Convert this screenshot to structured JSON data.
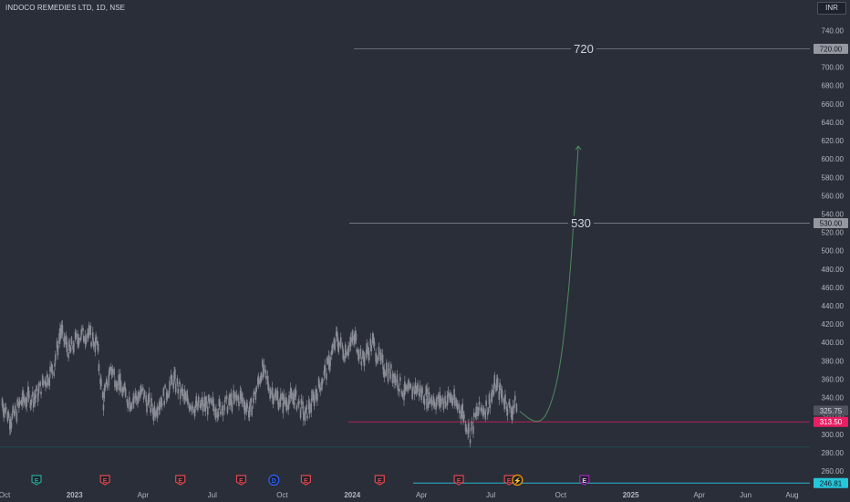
{
  "header": {
    "symbol_title": "INDOCO REMEDIES LTD, 1D, NSE",
    "currency": "INR"
  },
  "colors": {
    "background": "#2a2e39",
    "axis_text": "#b2b5be",
    "candles": "#8a8d96",
    "horizontal_lines": "#868993",
    "projection_curve": "#4f8a5f",
    "low_price_line": "#e91e63",
    "support_line": "#1b5e60",
    "cyan_line": "#26c6da",
    "earnings_badge": "#e0474c",
    "earnings_badge_first": "#26a69a",
    "dividend_badge": "#2962ff",
    "future_event_badge": "#9c27b0"
  },
  "chart_data": {
    "type": "candlestick",
    "y_axis": {
      "min": 240,
      "max": 750,
      "ticks": [
        740,
        720,
        700,
        680,
        660,
        640,
        620,
        600,
        580,
        560,
        540,
        520,
        500,
        480,
        460,
        440,
        420,
        400,
        380,
        360,
        340,
        320,
        300,
        280,
        260
      ],
      "tick_labels": [
        "740.00",
        "720.00",
        "700.00",
        "680.00",
        "660.00",
        "640.00",
        "620.00",
        "600.00",
        "580.00",
        "560.00",
        "540.00",
        "520.00",
        "500.00",
        "480.00",
        "460.00",
        "440.00",
        "420.00",
        "400.00",
        "380.00",
        "360.00",
        "340.00",
        "320.00",
        "300.00",
        "280.00",
        "260.00"
      ]
    },
    "x_axis": {
      "range": [
        "2022-10-01",
        "2025-08-10"
      ],
      "ticks": [
        {
          "date": "2022-10-01",
          "label": "Oct"
        },
        {
          "date": "2023-01-01",
          "label": "2023"
        },
        {
          "date": "2023-04-01",
          "label": "Apr"
        },
        {
          "date": "2023-07-01",
          "label": "Jul"
        },
        {
          "date": "2023-10-01",
          "label": "Oct"
        },
        {
          "date": "2024-01-01",
          "label": "2024"
        },
        {
          "date": "2024-04-01",
          "label": "Apr"
        },
        {
          "date": "2024-07-01",
          "label": "Jul"
        },
        {
          "date": "2024-10-01",
          "label": "Oct"
        },
        {
          "date": "2025-01-01",
          "label": "2025"
        },
        {
          "date": "2025-04-01",
          "label": "Apr"
        },
        {
          "date": "2025-06-01",
          "label": "Jun"
        },
        {
          "date": "2025-08-01",
          "label": "Aug"
        }
      ]
    },
    "price_path": [
      {
        "date": "2022-09-28",
        "close": 335
      },
      {
        "date": "2022-10-10",
        "close": 315
      },
      {
        "date": "2022-10-25",
        "close": 338
      },
      {
        "date": "2022-11-10",
        "close": 340
      },
      {
        "date": "2022-11-25",
        "close": 360
      },
      {
        "date": "2022-12-05",
        "close": 372
      },
      {
        "date": "2022-12-14",
        "close": 412
      },
      {
        "date": "2022-12-26",
        "close": 390
      },
      {
        "date": "2023-01-05",
        "close": 405
      },
      {
        "date": "2023-01-18",
        "close": 410
      },
      {
        "date": "2023-01-31",
        "close": 398
      },
      {
        "date": "2023-02-08",
        "close": 335
      },
      {
        "date": "2023-02-18",
        "close": 372
      },
      {
        "date": "2023-03-01",
        "close": 355
      },
      {
        "date": "2023-03-15",
        "close": 335
      },
      {
        "date": "2023-04-01",
        "close": 345
      },
      {
        "date": "2023-04-15",
        "close": 325
      },
      {
        "date": "2023-04-28",
        "close": 340
      },
      {
        "date": "2023-05-12",
        "close": 360
      },
      {
        "date": "2023-05-25",
        "close": 340
      },
      {
        "date": "2023-06-08",
        "close": 330
      },
      {
        "date": "2023-06-25",
        "close": 332
      },
      {
        "date": "2023-07-10",
        "close": 328
      },
      {
        "date": "2023-07-25",
        "close": 335
      },
      {
        "date": "2023-08-08",
        "close": 340
      },
      {
        "date": "2023-08-20",
        "close": 325
      },
      {
        "date": "2023-09-05",
        "close": 370
      },
      {
        "date": "2023-09-18",
        "close": 345
      },
      {
        "date": "2023-10-02",
        "close": 335
      },
      {
        "date": "2023-10-18",
        "close": 340
      },
      {
        "date": "2023-11-01",
        "close": 320
      },
      {
        "date": "2023-11-18",
        "close": 350
      },
      {
        "date": "2023-12-01",
        "close": 375
      },
      {
        "date": "2023-12-12",
        "close": 405
      },
      {
        "date": "2023-12-22",
        "close": 390
      },
      {
        "date": "2024-01-05",
        "close": 405
      },
      {
        "date": "2024-01-15",
        "close": 380
      },
      {
        "date": "2024-01-28",
        "close": 400
      },
      {
        "date": "2024-02-10",
        "close": 375
      },
      {
        "date": "2024-02-25",
        "close": 365
      },
      {
        "date": "2024-03-10",
        "close": 345
      },
      {
        "date": "2024-03-25",
        "close": 350
      },
      {
        "date": "2024-04-10",
        "close": 340
      },
      {
        "date": "2024-04-25",
        "close": 335
      },
      {
        "date": "2024-05-10",
        "close": 340
      },
      {
        "date": "2024-05-25",
        "close": 325
      },
      {
        "date": "2024-06-04",
        "close": 300
      },
      {
        "date": "2024-06-14",
        "close": 325
      },
      {
        "date": "2024-06-28",
        "close": 330
      },
      {
        "date": "2024-07-08",
        "close": 355
      },
      {
        "date": "2024-07-18",
        "close": 340
      },
      {
        "date": "2024-07-28",
        "close": 325
      },
      {
        "date": "2024-08-05",
        "close": 335
      }
    ],
    "annotations": [
      {
        "type": "hline",
        "value": 720,
        "label": "720",
        "axis_label": "720.00",
        "start": "2024-01-01"
      },
      {
        "type": "hline",
        "value": 530,
        "label": "530",
        "axis_label": "530.00",
        "start": "2024-01-01"
      },
      {
        "type": "hline",
        "value": 313.5,
        "axis_label": "313.50",
        "start": "2024-01-01"
      },
      {
        "type": "hline",
        "value": 286,
        "start": "2022-10-01"
      },
      {
        "type": "hline",
        "value": 246.81,
        "axis_label": "246.81",
        "start": "2024-05-01"
      },
      {
        "type": "price_marker",
        "value": 325.75,
        "axis_label": "325.75"
      },
      {
        "type": "projection_curve",
        "points": [
          {
            "date": "2024-08-08",
            "value": 325
          },
          {
            "date": "2024-08-28",
            "value": 312
          },
          {
            "date": "2024-09-12",
            "value": 318
          },
          {
            "date": "2024-09-28",
            "value": 360
          },
          {
            "date": "2024-10-10",
            "value": 440
          },
          {
            "date": "2024-10-18",
            "value": 530
          },
          {
            "date": "2024-10-24",
            "value": 614
          }
        ]
      }
    ],
    "events": [
      {
        "date": "2022-11-12",
        "badge": "E"
      },
      {
        "date": "2023-02-10",
        "badge": "E"
      },
      {
        "date": "2023-05-20",
        "badge": "E"
      },
      {
        "date": "2023-08-08",
        "badge": "E"
      },
      {
        "date": "2023-09-20",
        "badge": "D"
      },
      {
        "date": "2023-11-01",
        "badge": "E"
      },
      {
        "date": "2024-02-06",
        "badge": "E"
      },
      {
        "date": "2024-05-20",
        "badge": "E"
      },
      {
        "date": "2024-07-25",
        "badge": "E"
      },
      {
        "date": "2024-08-05",
        "badge": "⚡"
      },
      {
        "date": "2024-11-01",
        "badge": "E"
      }
    ]
  }
}
